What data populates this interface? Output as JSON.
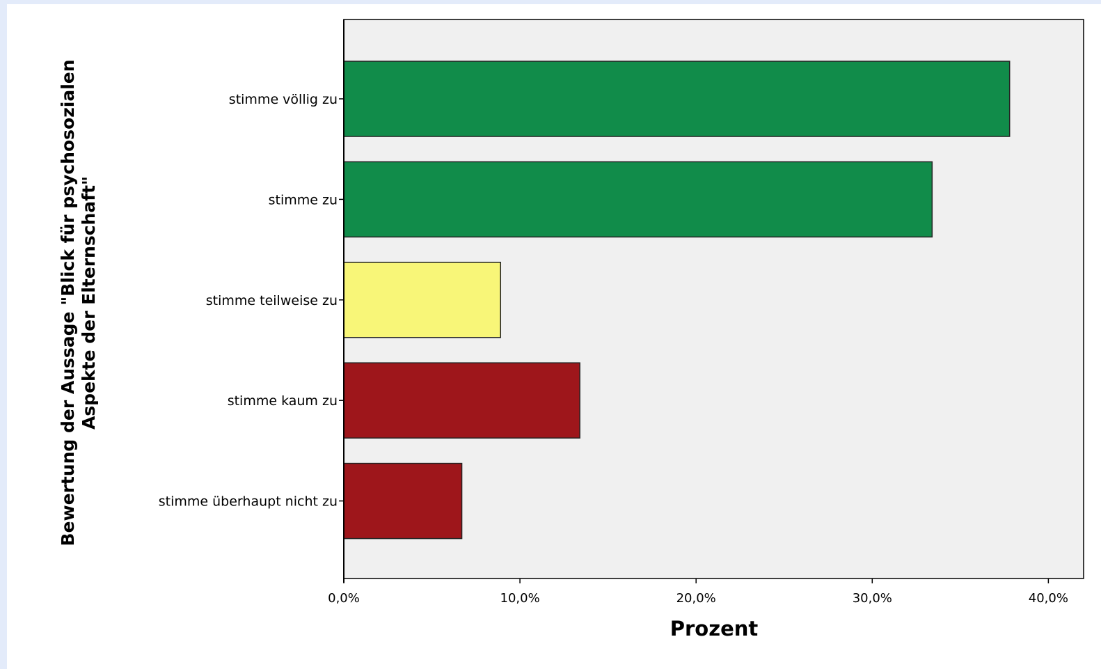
{
  "chart_data": {
    "type": "bar",
    "orientation": "horizontal",
    "categories": [
      "stimme völlig zu",
      "stimme zu",
      "stimme teilweise zu",
      "stimme kaum zu",
      "stimme überhaupt nicht zu"
    ],
    "values": [
      37.8,
      33.4,
      8.9,
      13.4,
      6.7
    ],
    "bar_colors": [
      "#118c4a",
      "#118c4a",
      "#f8f678",
      "#9e161b",
      "#9e161b"
    ],
    "xlabel": "Prozent",
    "ylabel_lines": [
      "Bewertung der Aussage \"Blick für psychosozialen",
      "Aspekte der Elternschaft\""
    ],
    "xlim": [
      0,
      42
    ],
    "x_ticks": [
      0,
      10,
      20,
      30,
      40
    ],
    "x_tick_labels": [
      "0,0%",
      "10,0%",
      "20,0%",
      "30,0%",
      "40,0%"
    ],
    "grid": false,
    "legend": "none",
    "plot_background": "#f0f0f0",
    "page_background": "#e3ebfa"
  }
}
